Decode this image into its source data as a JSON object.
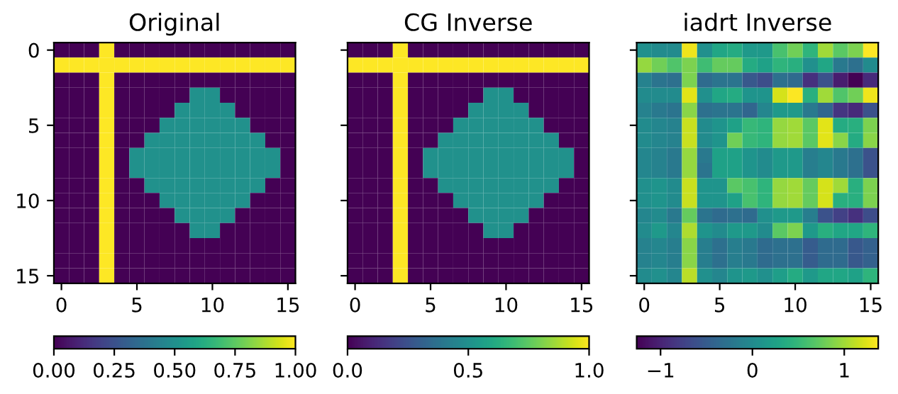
{
  "chart_data": [
    {
      "type": "heatmap",
      "title": "Original",
      "xlim": [
        -0.5,
        15.5
      ],
      "ylim": [
        15.5,
        -0.5
      ],
      "xticks": [
        0,
        5,
        10,
        15
      ],
      "yticks": [
        0,
        5,
        10,
        15
      ],
      "clim": [
        0,
        1
      ],
      "cticks": [
        {
          "value": 0,
          "label": "0.00"
        },
        {
          "value": 0.25,
          "label": "0.25"
        },
        {
          "value": 0.5,
          "label": "0.50"
        },
        {
          "value": 0.75,
          "label": "0.75"
        },
        {
          "value": 1,
          "label": "1.00"
        }
      ],
      "cells": [
        [
          0,
          0,
          0,
          1,
          0,
          0,
          0,
          0,
          0,
          0,
          0,
          0,
          0,
          0,
          0,
          0
        ],
        [
          1,
          1,
          1,
          1,
          1,
          1,
          1,
          1,
          1,
          1,
          1,
          1,
          1,
          1,
          1,
          1
        ],
        [
          0,
          0,
          0,
          1,
          0,
          0,
          0,
          0,
          0,
          0,
          0,
          0,
          0,
          0,
          0,
          0
        ],
        [
          0,
          0,
          0,
          1,
          0,
          0,
          0,
          0,
          0,
          0.5,
          0.5,
          0,
          0,
          0,
          0,
          0
        ],
        [
          0,
          0,
          0,
          1,
          0,
          0,
          0,
          0,
          0.5,
          0.5,
          0.5,
          0.5,
          0,
          0,
          0,
          0
        ],
        [
          0,
          0,
          0,
          1,
          0,
          0,
          0,
          0.5,
          0.5,
          0.5,
          0.5,
          0.5,
          0.5,
          0,
          0,
          0
        ],
        [
          0,
          0,
          0,
          1,
          0,
          0,
          0.5,
          0.5,
          0.5,
          0.5,
          0.5,
          0.5,
          0.5,
          0.5,
          0,
          0
        ],
        [
          0,
          0,
          0,
          1,
          0,
          0.5,
          0.5,
          0.5,
          0.5,
          0.5,
          0.5,
          0.5,
          0.5,
          0.5,
          0.5,
          0
        ],
        [
          0,
          0,
          0,
          1,
          0,
          0.5,
          0.5,
          0.5,
          0.5,
          0.5,
          0.5,
          0.5,
          0.5,
          0.5,
          0.5,
          0
        ],
        [
          0,
          0,
          0,
          1,
          0,
          0,
          0.5,
          0.5,
          0.5,
          0.5,
          0.5,
          0.5,
          0.5,
          0.5,
          0,
          0
        ],
        [
          0,
          0,
          0,
          1,
          0,
          0,
          0,
          0.5,
          0.5,
          0.5,
          0.5,
          0.5,
          0.5,
          0,
          0,
          0
        ],
        [
          0,
          0,
          0,
          1,
          0,
          0,
          0,
          0,
          0.5,
          0.5,
          0.5,
          0.5,
          0,
          0,
          0,
          0
        ],
        [
          0,
          0,
          0,
          1,
          0,
          0,
          0,
          0,
          0,
          0.5,
          0.5,
          0,
          0,
          0,
          0,
          0
        ],
        [
          0,
          0,
          0,
          1,
          0,
          0,
          0,
          0,
          0,
          0,
          0,
          0,
          0,
          0,
          0,
          0
        ],
        [
          0,
          0,
          0,
          1,
          0,
          0,
          0,
          0,
          0,
          0,
          0,
          0,
          0,
          0,
          0,
          0
        ],
        [
          0,
          0,
          0,
          1,
          0,
          0,
          0,
          0,
          0,
          0,
          0,
          0,
          0,
          0,
          0,
          0
        ]
      ]
    },
    {
      "type": "heatmap",
      "title": "CG Inverse",
      "xlim": [
        -0.5,
        15.5
      ],
      "ylim": [
        15.5,
        -0.5
      ],
      "xticks": [
        0,
        5,
        10,
        15
      ],
      "yticks": [
        0,
        5,
        10,
        15
      ],
      "tick_labels": "x",
      "clim": [
        0,
        1
      ],
      "cticks": [
        {
          "value": 0,
          "label": "0.0"
        },
        {
          "value": 0.5,
          "label": "0.5"
        },
        {
          "value": 1,
          "label": "1.0"
        }
      ],
      "cells": [
        [
          0,
          0,
          0,
          1,
          0,
          0,
          0,
          0,
          0,
          0,
          0,
          0,
          0,
          0,
          0,
          0
        ],
        [
          1,
          1,
          1,
          1,
          1,
          1,
          1,
          1,
          1,
          1,
          1,
          1,
          1,
          1,
          1,
          1
        ],
        [
          0,
          0,
          0,
          1,
          0,
          0,
          0,
          0,
          0,
          0,
          0,
          0,
          0,
          0,
          0,
          0
        ],
        [
          0,
          0,
          0,
          1,
          0,
          0,
          0,
          0,
          0,
          0.5,
          0.5,
          0,
          0,
          0,
          0,
          0
        ],
        [
          0,
          0,
          0,
          1,
          0,
          0,
          0,
          0,
          0.5,
          0.5,
          0.5,
          0.5,
          0,
          0,
          0,
          0
        ],
        [
          0,
          0,
          0,
          1,
          0,
          0,
          0,
          0.5,
          0.5,
          0.5,
          0.5,
          0.5,
          0.5,
          0,
          0,
          0
        ],
        [
          0,
          0,
          0,
          1,
          0,
          0,
          0.5,
          0.5,
          0.5,
          0.5,
          0.5,
          0.5,
          0.5,
          0.5,
          0,
          0
        ],
        [
          0,
          0,
          0,
          1,
          0,
          0.5,
          0.5,
          0.5,
          0.5,
          0.5,
          0.5,
          0.5,
          0.5,
          0.5,
          0.5,
          0
        ],
        [
          0,
          0,
          0,
          1,
          0,
          0.5,
          0.5,
          0.5,
          0.5,
          0.5,
          0.5,
          0.5,
          0.5,
          0.5,
          0.5,
          0
        ],
        [
          0,
          0,
          0,
          1,
          0,
          0,
          0.5,
          0.5,
          0.5,
          0.5,
          0.5,
          0.5,
          0.5,
          0.5,
          0,
          0
        ],
        [
          0,
          0,
          0,
          1,
          0,
          0,
          0,
          0.5,
          0.5,
          0.5,
          0.5,
          0.5,
          0.5,
          0,
          0,
          0
        ],
        [
          0,
          0,
          0,
          1,
          0,
          0,
          0,
          0,
          0.5,
          0.5,
          0.5,
          0.5,
          0,
          0,
          0,
          0
        ],
        [
          0,
          0,
          0,
          1,
          0,
          0,
          0,
          0,
          0,
          0.5,
          0.5,
          0,
          0,
          0,
          0,
          0
        ],
        [
          0,
          0,
          0,
          1,
          0,
          0,
          0,
          0,
          0,
          0,
          0,
          0,
          0,
          0,
          0,
          0
        ],
        [
          0,
          0,
          0,
          1,
          0,
          0,
          0,
          0,
          0,
          0,
          0,
          0,
          0,
          0,
          0,
          0
        ],
        [
          0,
          0,
          0,
          1,
          0,
          0,
          0,
          0,
          0,
          0,
          0,
          0,
          0,
          0,
          0,
          0
        ]
      ]
    },
    {
      "type": "heatmap",
      "title": "iadrt Inverse",
      "xlim": [
        -0.5,
        15.5
      ],
      "ylim": [
        15.5,
        -0.5
      ],
      "xticks": [
        0,
        5,
        10,
        15
      ],
      "yticks": [
        0,
        5,
        10,
        15
      ],
      "tick_labels": "x",
      "clim": [
        -1.26,
        1.37
      ],
      "cticks": [
        {
          "value": -1,
          "label": "−1"
        },
        0,
        1
      ],
      "cells": [
        [
          0.05,
          0.0,
          0.0,
          1.3,
          0.05,
          0.3,
          0.35,
          0.15,
          0.15,
          0.6,
          0.8,
          0.45,
          1.0,
          0.7,
          0.85,
          1.37
        ],
        [
          0.95,
          0.8,
          0.65,
          0.85,
          0.55,
          0.75,
          0.75,
          0.35,
          0.25,
          0.45,
          0.4,
          0.05,
          0.3,
          -0.2,
          -0.3,
          0.0
        ],
        [
          -0.1,
          -0.25,
          -0.3,
          0.85,
          -0.35,
          -0.25,
          -0.25,
          -0.55,
          -0.65,
          -0.3,
          -0.35,
          -0.9,
          -0.6,
          -1.05,
          -1.26,
          -0.95
        ],
        [
          0.0,
          0.0,
          0.0,
          1.25,
          0.05,
          0.3,
          0.35,
          0.1,
          0.1,
          1.2,
          1.35,
          0.4,
          1.0,
          0.65,
          0.8,
          1.3
        ],
        [
          -0.1,
          -0.2,
          -0.25,
          0.9,
          -0.3,
          -0.25,
          -0.25,
          -0.4,
          -0.05,
          0.15,
          0.15,
          -0.2,
          -0.4,
          -0.85,
          -0.95,
          -0.6
        ],
        [
          0.0,
          -0.05,
          -0.1,
          1.15,
          0.0,
          0.1,
          0.25,
          0.5,
          0.45,
          0.95,
          1.0,
          0.7,
          1.25,
          0.35,
          0.4,
          0.85
        ],
        [
          0.0,
          -0.05,
          -0.1,
          1.15,
          0.0,
          0.1,
          0.8,
          0.5,
          0.45,
          0.95,
          1.0,
          0.7,
          1.25,
          0.9,
          0.35,
          0.9
        ],
        [
          -0.05,
          -0.1,
          -0.2,
          0.95,
          -0.2,
          0.25,
          0.25,
          0.1,
          0.0,
          0.15,
          0.15,
          -0.15,
          -0.05,
          -0.2,
          -0.3,
          -0.6
        ],
        [
          -0.05,
          -0.1,
          -0.2,
          0.95,
          -0.25,
          0.25,
          0.25,
          0.1,
          0.0,
          0.15,
          0.15,
          -0.15,
          -0.05,
          -0.2,
          -0.3,
          -0.6
        ],
        [
          0.05,
          0.1,
          0.0,
          1.15,
          0.1,
          0.1,
          0.7,
          0.6,
          0.45,
          0.95,
          1.0,
          0.75,
          1.2,
          1.0,
          0.4,
          0.85
        ],
        [
          0.05,
          0.1,
          0.0,
          1.15,
          0.1,
          0.1,
          0.25,
          0.6,
          0.45,
          0.95,
          1.0,
          0.75,
          1.2,
          0.4,
          0.4,
          0.85
        ],
        [
          -0.05,
          0.0,
          -0.2,
          0.75,
          -0.25,
          -0.35,
          -0.3,
          -0.35,
          0.05,
          0.15,
          0.15,
          -0.15,
          -0.6,
          -0.75,
          -0.9,
          -0.65
        ],
        [
          0.0,
          0.15,
          -0.05,
          1.05,
          0.1,
          0.0,
          0.15,
          0.15,
          0.0,
          0.7,
          0.85,
          0.15,
          0.4,
          0.3,
          0.3,
          0.45
        ],
        [
          -0.1,
          -0.05,
          -0.15,
          0.9,
          -0.15,
          -0.3,
          -0.15,
          -0.2,
          -0.35,
          -0.3,
          -0.3,
          -0.5,
          -0.35,
          -0.35,
          -0.55,
          -0.45
        ],
        [
          -0.1,
          -0.05,
          -0.15,
          0.9,
          -0.15,
          -0.3,
          -0.15,
          -0.2,
          -0.35,
          -0.3,
          -0.3,
          -0.5,
          -0.35,
          -0.35,
          -0.55,
          -0.45
        ],
        [
          0.0,
          0.05,
          -0.05,
          1.1,
          0.05,
          -0.05,
          0.1,
          0.15,
          0.05,
          0.2,
          0.35,
          0.15,
          0.3,
          0.3,
          0.25,
          0.45
        ]
      ]
    }
  ]
}
